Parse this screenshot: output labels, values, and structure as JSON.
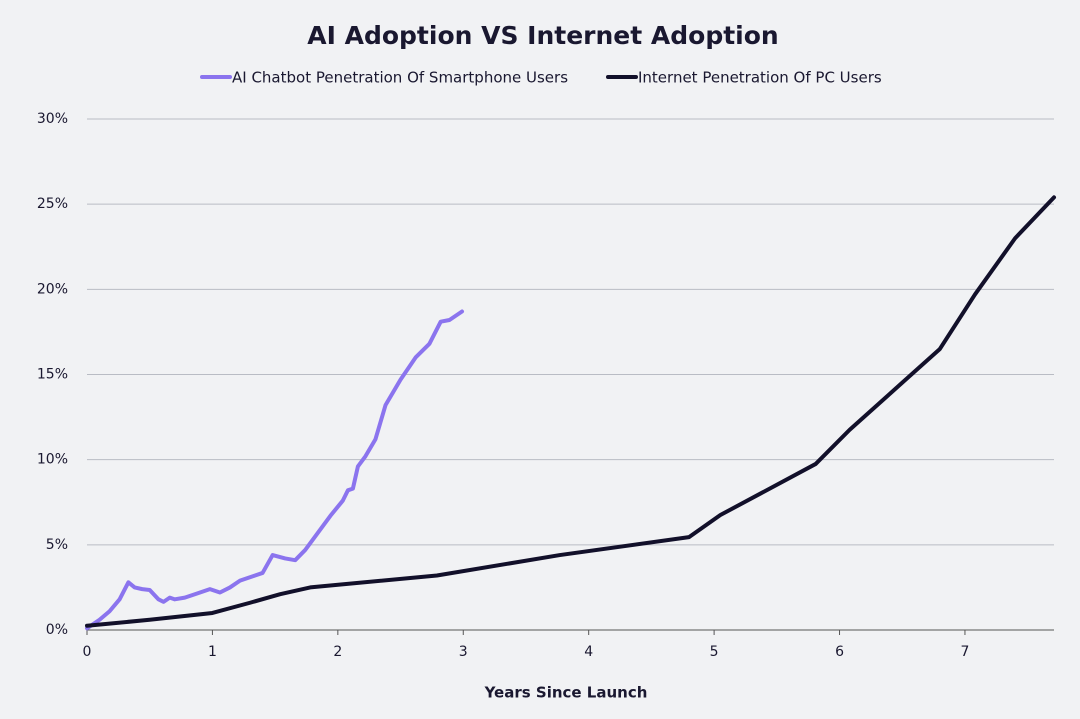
{
  "chart_data": {
    "type": "line",
    "title": "AI Adoption VS Internet Adoption",
    "x_label": "Years Since Launch",
    "legend": "top",
    "grid": true,
    "xlim": [
      0,
      7.71
    ],
    "ylim": [
      0,
      30
    ],
    "xticks": [
      0,
      1,
      2,
      3,
      4,
      5,
      6,
      7
    ],
    "yticks": [
      {
        "value": 0,
        "label": "0%"
      },
      {
        "value": 5,
        "label": "5%"
      },
      {
        "value": 10,
        "label": "10%"
      },
      {
        "value": 15,
        "label": "15%"
      },
      {
        "value": 20,
        "label": "20%"
      },
      {
        "value": 25,
        "label": "25%"
      },
      {
        "value": 30,
        "label": "30%"
      }
    ],
    "series": [
      {
        "name": "AI Chatbot Penetration Of Smartphone Users",
        "color": "#8b74ee",
        "x": [
          0,
          0.1,
          0.18,
          0.26,
          0.33,
          0.38,
          0.44,
          0.5,
          0.57,
          0.61,
          0.66,
          0.7,
          0.78,
          0.86,
          0.98,
          1.06,
          1.14,
          1.22,
          1.34,
          1.4,
          1.48,
          1.58,
          1.66,
          1.74,
          1.84,
          1.94,
          2.04,
          2.08,
          2.12,
          2.16,
          2.22,
          2.3,
          2.38,
          2.5,
          2.62,
          2.73,
          2.82,
          2.89,
          2.99
        ],
        "values": [
          0.1,
          0.6,
          1.1,
          1.8,
          2.8,
          2.5,
          2.4,
          2.35,
          1.8,
          1.65,
          1.9,
          1.8,
          1.9,
          2.1,
          2.4,
          2.2,
          2.5,
          2.9,
          3.2,
          3.35,
          4.4,
          4.2,
          4.1,
          4.7,
          5.7,
          6.7,
          7.6,
          8.2,
          8.3,
          9.6,
          10.2,
          11.2,
          13.2,
          14.7,
          16.0,
          16.8,
          18.1,
          18.2,
          18.7
        ]
      },
      {
        "name": "Internet Penetration Of PC Users",
        "color": "#12102a",
        "x": [
          0,
          0.5,
          1.0,
          1.3,
          1.54,
          1.78,
          2.79,
          3.77,
          4.8,
          5.05,
          5.81,
          6.08,
          6.8,
          7.08,
          7.4,
          7.71
        ],
        "values": [
          0.25,
          0.6,
          1.0,
          1.6,
          2.1,
          2.5,
          3.2,
          4.4,
          5.45,
          6.75,
          9.75,
          11.75,
          16.5,
          19.7,
          23.0,
          25.4
        ]
      }
    ]
  }
}
